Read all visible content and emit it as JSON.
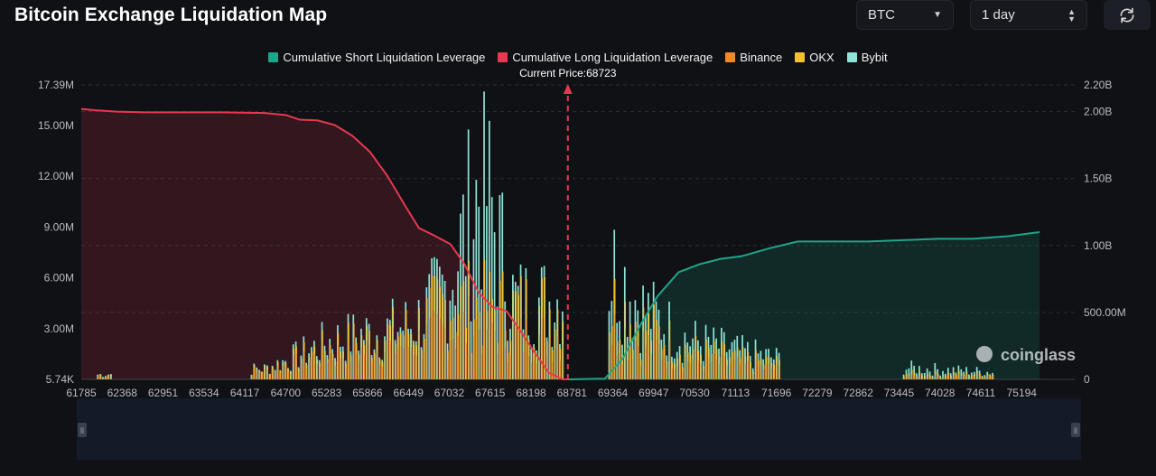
{
  "header": {
    "title": "Bitcoin Exchange Liquidation Map"
  },
  "controls": {
    "symbol": "BTC",
    "range": "1 day"
  },
  "legend": [
    {
      "label": "Cumulative Short Liquidation Leverage",
      "color": "#1fa58a"
    },
    {
      "label": "Cumulative Long Liquidation Leverage",
      "color": "#e8384f"
    },
    {
      "label": "Binance",
      "color": "#f08a24"
    },
    {
      "label": "OKX",
      "color": "#f5c12b"
    },
    {
      "label": "Bybit",
      "color": "#8fe3d8"
    }
  ],
  "annotation": {
    "current_price_label": "Current Price:68723"
  },
  "watermark": "coinglass",
  "chart_data": {
    "type": "bar",
    "title": "Bitcoin Exchange Liquidation Map",
    "current_price": 68723,
    "x_ticks": [
      "61785",
      "62368",
      "62951",
      "63534",
      "64117",
      "64700",
      "65283",
      "65866",
      "66449",
      "67032",
      "67615",
      "68198",
      "68781",
      "69364",
      "69947",
      "70530",
      "71113",
      "71696",
      "72279",
      "72862",
      "73445",
      "74028",
      "74611",
      "75194"
    ],
    "x_range": [
      61785,
      75950
    ],
    "y_left": {
      "ticks": [
        "17.39M",
        "15.00M",
        "12.00M",
        "9.00M",
        "6.00M",
        "3.00M",
        "5.74K"
      ],
      "values": [
        17.39,
        15,
        12,
        9,
        6,
        3,
        0.00574
      ],
      "unit": "M",
      "range": [
        0.00574,
        17.39
      ]
    },
    "y_right": {
      "ticks": [
        "2.20B",
        "2.00B",
        "1.50B",
        "1.00B",
        "500.00M",
        "0"
      ],
      "values": [
        2.2,
        2.0,
        1.5,
        1.0,
        0.5,
        0
      ],
      "unit": "B",
      "range": [
        0,
        2.2
      ]
    },
    "series": [
      {
        "name": "Cumulative Long Liquidation Leverage",
        "axis": "right",
        "color": "#e8384f",
        "x": [
          61785,
          62000,
          62300,
          62700,
          63200,
          63800,
          64400,
          64700,
          64900,
          65150,
          65400,
          65650,
          65900,
          66150,
          66400,
          66600,
          66800,
          67050,
          67250,
          67450,
          67650,
          67850,
          68050,
          68250,
          68450,
          68650,
          68723
        ],
        "y": [
          2.02,
          2.01,
          2.0,
          1.995,
          1.995,
          1.995,
          1.99,
          1.975,
          1.94,
          1.935,
          1.9,
          1.82,
          1.7,
          1.52,
          1.3,
          1.13,
          1.08,
          1.01,
          0.86,
          0.65,
          0.54,
          0.51,
          0.36,
          0.2,
          0.05,
          0.0,
          0.0
        ]
      },
      {
        "name": "Cumulative Short Liquidation Leverage",
        "axis": "right",
        "color": "#1fa58a",
        "x": [
          68723,
          69250,
          69500,
          69750,
          70000,
          70300,
          70600,
          70900,
          71200,
          71600,
          72000,
          72500,
          73000,
          73500,
          74000,
          74500,
          75000,
          75450
        ],
        "y": [
          0,
          0.005,
          0.15,
          0.4,
          0.62,
          0.8,
          0.86,
          0.9,
          0.92,
          0.98,
          1.03,
          1.03,
          1.03,
          1.04,
          1.05,
          1.05,
          1.07,
          1.1
        ]
      },
      {
        "name": "Binance",
        "axis": "left",
        "color": "#f08a24",
        "x": [
          62000,
          64400,
          65300,
          65900,
          66500,
          67000,
          67500,
          68000,
          69400,
          69800,
          70400,
          71200,
          71800,
          73700,
          74800
        ],
        "y": [
          0.3,
          0.8,
          2.5,
          3.0,
          3.6,
          5.0,
          5.6,
          4.2,
          4.8,
          3.6,
          2.0,
          1.4,
          1.0,
          0.3,
          0.4
        ]
      },
      {
        "name": "OKX",
        "axis": "left",
        "color": "#f5c12b",
        "x": [
          62000,
          64400,
          65300,
          65900,
          66500,
          67000,
          67500,
          68000,
          69400,
          69800,
          70400,
          71200,
          71800,
          73700,
          74800
        ],
        "y": [
          0.4,
          0.9,
          2.9,
          3.7,
          4.5,
          6.9,
          6.6,
          6.3,
          6.6,
          4.8,
          2.7,
          1.8,
          1.3,
          0.5,
          0.5
        ]
      },
      {
        "name": "Bybit",
        "axis": "left",
        "color": "#8fe3d8",
        "x": [
          62000,
          64400,
          65300,
          65900,
          66500,
          67000,
          67500,
          68000,
          69400,
          69800,
          70400,
          71200,
          71800,
          73700,
          74800
        ],
        "y": [
          0.3,
          0.8,
          3.1,
          3.8,
          4.1,
          7.8,
          16.2,
          5.1,
          8.9,
          5.6,
          3.3,
          2.2,
          1.6,
          0.9,
          0.6
        ]
      }
    ]
  }
}
